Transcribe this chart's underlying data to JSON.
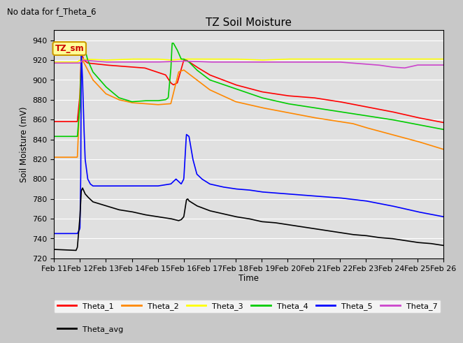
{
  "title": "TZ Soil Moisture",
  "subtitle": "No data for f_Theta_6",
  "xlabel": "Time",
  "ylabel": "Soil Moisture (mV)",
  "ylim": [
    720,
    950
  ],
  "x_tick_labels": [
    "Feb 11",
    "Feb 12",
    "Feb 13",
    "Feb 14",
    "Feb 15",
    "Feb 16",
    "Feb 17",
    "Feb 18",
    "Feb 19",
    "Feb 20",
    "Feb 21",
    "Feb 22",
    "Feb 23",
    "Feb 24",
    "Feb 25",
    "Feb 26"
  ],
  "legend_entries": [
    "Theta_1",
    "Theta_2",
    "Theta_3",
    "Theta_4",
    "Theta_5",
    "Theta_7",
    "Theta_avg"
  ],
  "legend_colors": [
    "#ff0000",
    "#ff8800",
    "#ffff00",
    "#00cc00",
    "#0000ff",
    "#cc44cc",
    "#000000"
  ],
  "annotation_box": "TZ_sm",
  "annotation_color": "#cc0000",
  "annotation_bg": "#ffff99",
  "plot_bg": "#e8e8e8",
  "fig_bg": "#d0d0d0"
}
